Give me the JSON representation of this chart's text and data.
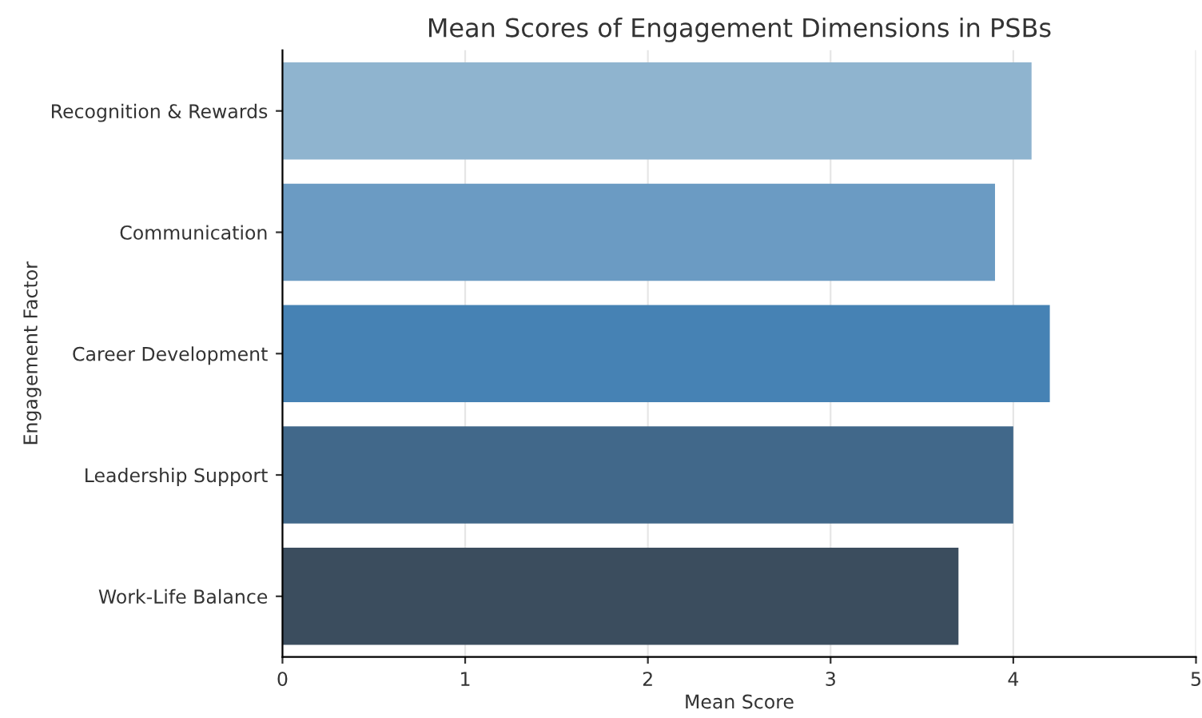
{
  "chart_data": {
    "type": "bar",
    "orientation": "horizontal",
    "title": "Mean Scores of Engagement Dimensions in PSBs",
    "xlabel": "Mean Score",
    "ylabel": "Engagement Factor",
    "categories": [
      "Recognition & Rewards",
      "Communication",
      "Career Development",
      "Leadership Support",
      "Work-Life Balance"
    ],
    "values": [
      4.1,
      3.9,
      4.2,
      4.0,
      3.7
    ],
    "colors": [
      "#8fb4cf",
      "#6b9bc3",
      "#4682b4",
      "#41688a",
      "#3b4d5e"
    ],
    "xlim": [
      0,
      5
    ],
    "xticks": [
      0,
      1,
      2,
      3,
      4,
      5
    ],
    "grid": "x"
  }
}
